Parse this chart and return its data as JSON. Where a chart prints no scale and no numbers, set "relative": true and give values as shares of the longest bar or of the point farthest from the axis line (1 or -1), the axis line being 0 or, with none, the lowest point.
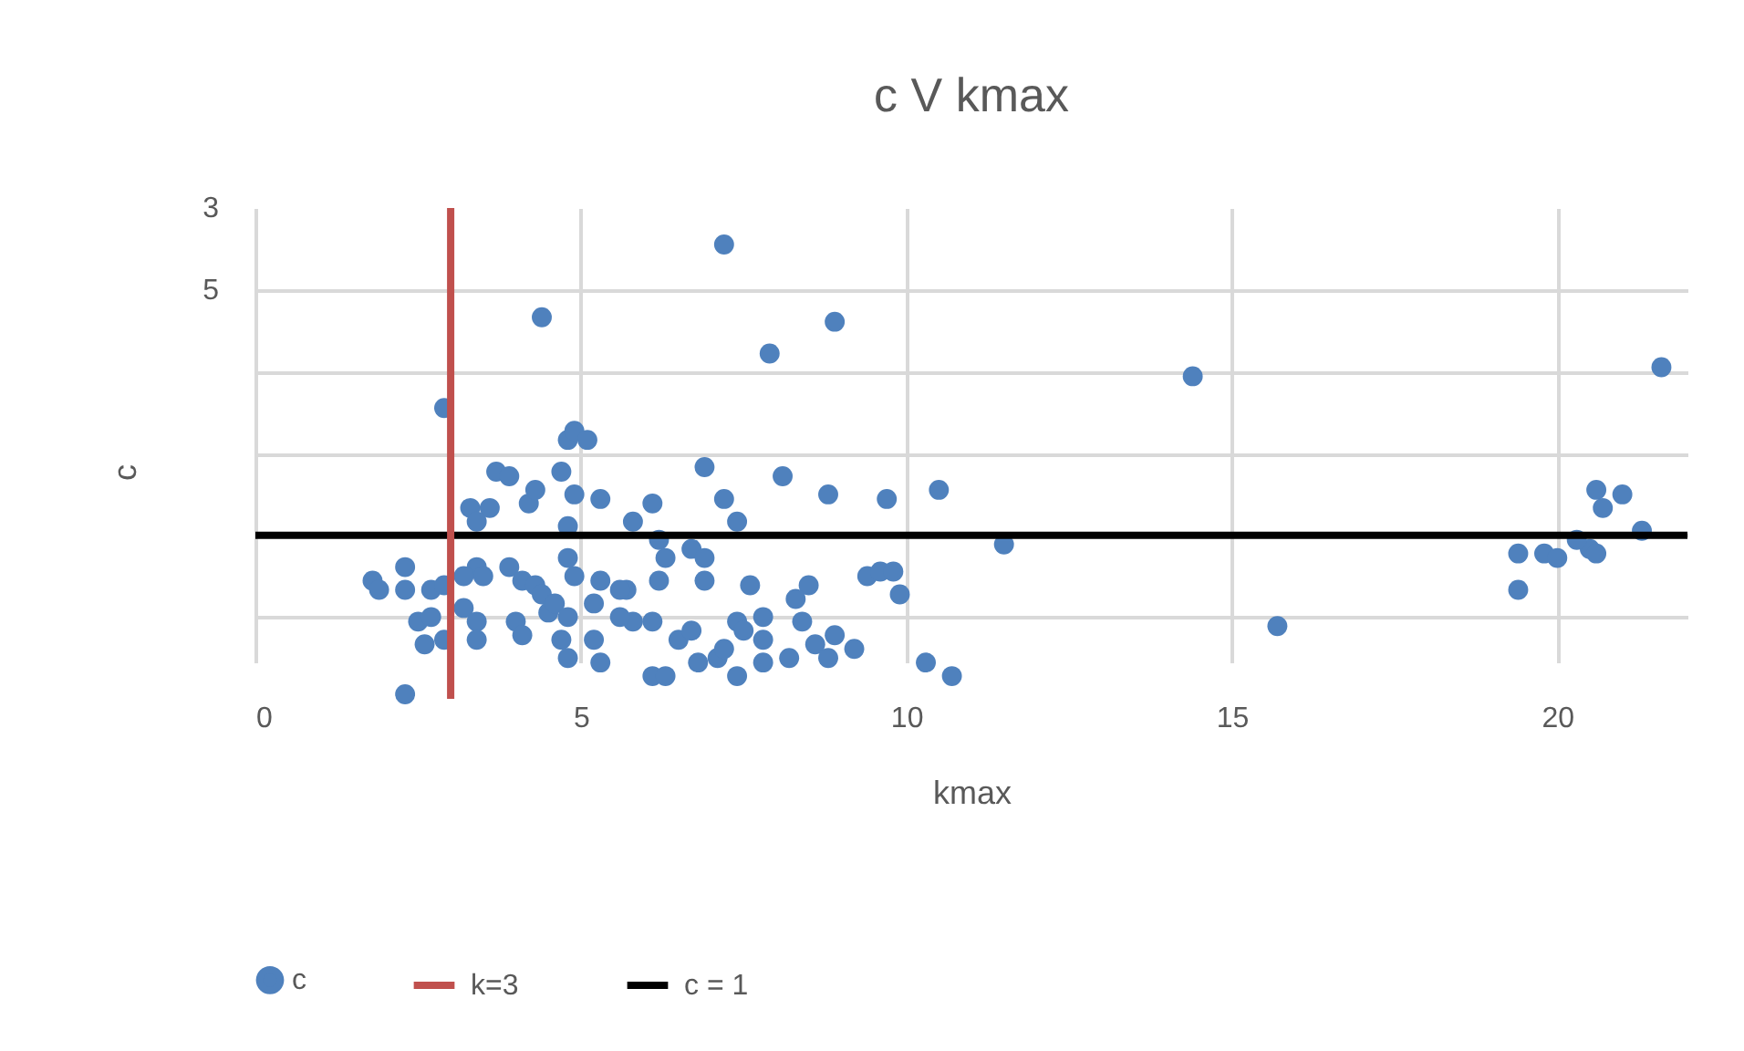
{
  "chart_data": {
    "type": "scatter",
    "title": "c V kmax",
    "xlabel": "kmax",
    "ylabel": "c",
    "relative": true,
    "x": [
      7.2,
      4.4,
      8.9,
      7.9,
      14.4,
      21.6,
      2.9,
      4.8,
      4.9,
      5.1,
      3.7,
      3.9,
      4.7,
      3.3,
      3.6,
      3.4,
      4.2,
      4.3,
      4.9,
      5.3,
      5.8,
      4.8,
      6.9,
      8.1,
      6.1,
      7.2,
      8.8,
      9.7,
      10.5,
      7.4,
      11.5,
      6.2,
      6.7,
      6.9,
      6.3,
      6.2,
      6.9,
      9.4,
      9.6,
      9.8,
      9.9,
      7.6,
      8.5,
      8.3,
      5.7,
      5.8,
      6.1,
      6.5,
      6.7,
      7.4,
      7.5,
      7.8,
      7.8,
      8.4,
      8.6,
      8.9,
      8.8,
      9.2,
      6.8,
      7.1,
      7.2,
      7.4,
      7.8,
      8.2,
      6.1,
      6.3,
      10.3,
      10.7,
      1.8,
      1.9,
      2.3,
      2.3,
      2.7,
      2.9,
      3.4,
      3.5,
      3.2,
      3.9,
      4.1,
      4.3,
      4.4,
      4.8,
      4.9,
      5.3,
      5.6,
      2.5,
      2.7,
      2.6,
      2.9,
      3.2,
      3.4,
      3.4,
      4.0,
      4.1,
      4.5,
      4.6,
      4.8,
      4.7,
      4.8,
      5.2,
      5.2,
      5.3,
      5.6,
      2.3,
      15.7,
      19.4,
      19.4,
      19.8,
      20.0,
      20.5,
      20.6,
      20.3,
      20.6,
      20.7,
      21.0,
      21.3
    ],
    "series": [
      {
        "name": "c",
        "color": "#4f81bd",
        "marker": "circle",
        "values": [
          1.0,
          0.84,
          0.83,
          0.76,
          0.71,
          0.73,
          0.64,
          0.57,
          0.59,
          0.57,
          0.5,
          0.49,
          0.5,
          0.42,
          0.42,
          0.39,
          0.43,
          0.46,
          0.45,
          0.44,
          0.39,
          0.38,
          0.51,
          0.49,
          0.43,
          0.44,
          0.45,
          0.44,
          0.46,
          0.39,
          0.34,
          0.35,
          0.33,
          0.31,
          0.31,
          0.26,
          0.26,
          0.27,
          0.28,
          0.28,
          0.23,
          0.25,
          0.25,
          0.22,
          0.24,
          0.17,
          0.17,
          0.13,
          0.15,
          0.17,
          0.15,
          0.13,
          0.18,
          0.17,
          0.12,
          0.14,
          0.09,
          0.11,
          0.08,
          0.09,
          0.11,
          0.05,
          0.08,
          0.09,
          0.05,
          0.05,
          0.08,
          0.05,
          0.26,
          0.24,
          0.29,
          0.24,
          0.24,
          0.25,
          0.29,
          0.27,
          0.27,
          0.29,
          0.26,
          0.25,
          0.23,
          0.31,
          0.27,
          0.26,
          0.24,
          0.17,
          0.18,
          0.12,
          0.13,
          0.2,
          0.17,
          0.13,
          0.17,
          0.14,
          0.19,
          0.21,
          0.18,
          0.13,
          0.09,
          0.21,
          0.13,
          0.08,
          0.18,
          0.01,
          0.16,
          0.32,
          0.24,
          0.32,
          0.31,
          0.33,
          0.32,
          0.35,
          0.46,
          0.42,
          0.45,
          0.37
        ]
      },
      {
        "name": "c = 1",
        "type": "line",
        "color": "#000000",
        "x": [
          0,
          22
        ],
        "values": [
          0.36,
          0.36
        ]
      }
    ],
    "xlim": [
      0,
      22
    ],
    "xticks": [
      0,
      5,
      10,
      15,
      20
    ],
    "annotations": [
      "3",
      "5"
    ],
    "ref_lines": [
      {
        "axis": "x",
        "value": 3,
        "label": "k=3",
        "color": "#c0504d"
      }
    ],
    "grid": true,
    "legend": "bottom"
  }
}
